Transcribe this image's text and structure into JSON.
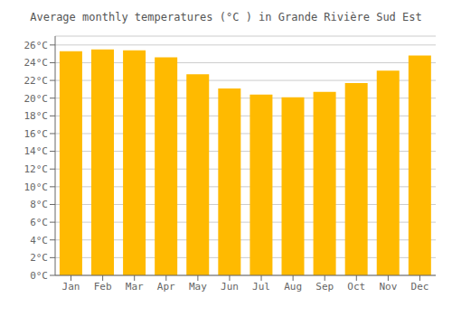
{
  "chart_data": {
    "type": "bar",
    "title": "Average monthly temperatures (°C ) in Grande Rivière Sud Est",
    "categories": [
      "Jan",
      "Feb",
      "Mar",
      "Apr",
      "May",
      "Jun",
      "Jul",
      "Aug",
      "Sep",
      "Oct",
      "Nov",
      "Dec"
    ],
    "values": [
      25.3,
      25.5,
      25.4,
      24.6,
      22.7,
      21.1,
      20.4,
      20.1,
      20.7,
      21.7,
      23.1,
      24.8
    ],
    "color": "#FFBA00",
    "ylim": [
      0,
      27
    ],
    "yticks": [
      {
        "value": 0,
        "label": "0°C"
      },
      {
        "value": 2,
        "label": "2°C"
      },
      {
        "value": 4,
        "label": "4°C"
      },
      {
        "value": 6,
        "label": "6°C"
      },
      {
        "value": 8,
        "label": "8°C"
      },
      {
        "value": 10,
        "label": "10°C"
      },
      {
        "value": 12,
        "label": "12°C"
      },
      {
        "value": 14,
        "label": "14°C"
      },
      {
        "value": 16,
        "label": "16°C"
      },
      {
        "value": 18,
        "label": "18°C"
      },
      {
        "value": 20,
        "label": "20°C"
      },
      {
        "value": 22,
        "label": "22°C"
      },
      {
        "value": 24,
        "label": "24°C"
      },
      {
        "value": 26,
        "label": "26°C"
      }
    ],
    "grid": true
  }
}
